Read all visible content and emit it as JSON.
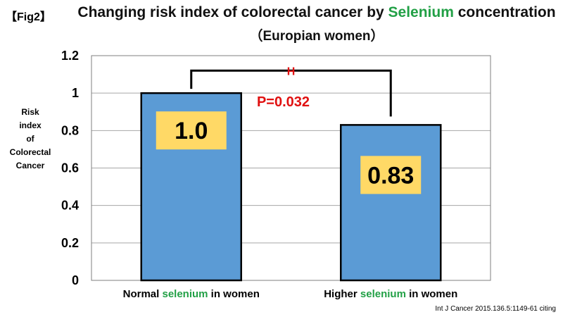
{
  "fig_label": "【Fig2】",
  "title": {
    "pre": "Changing risk index of colorectal cancer by ",
    "highlight": "Selenium",
    "post": " concentration"
  },
  "subtitle": "（Europian women）",
  "ylabel_lines": [
    "Risk",
    "index",
    "of",
    "Colorectal",
    "Cancer"
  ],
  "source": "Int J Cancer 2015.136.5:1149-61 citing",
  "colors": {
    "bar": "#5b9bd5",
    "label_box": "#ffd966",
    "highlight": "#22a046",
    "pvalue": "#e01010"
  },
  "chart_data": {
    "type": "bar",
    "categories": [
      {
        "pre": "Normal ",
        "highlight": "selenium",
        "post": " in women"
      },
      {
        "pre": "Higher ",
        "highlight": "selenium",
        "post": " in women"
      }
    ],
    "values": [
      1.0,
      0.83
    ],
    "data_labels": [
      "1.0",
      "0.83"
    ],
    "ylim": [
      0,
      1.2
    ],
    "yticks": [
      "0",
      "0.2",
      "0.4",
      "0.6",
      "0.8",
      "1",
      "1.2"
    ],
    "grid": true,
    "annotation": {
      "text": "P=0.032",
      "marker": "H"
    }
  }
}
